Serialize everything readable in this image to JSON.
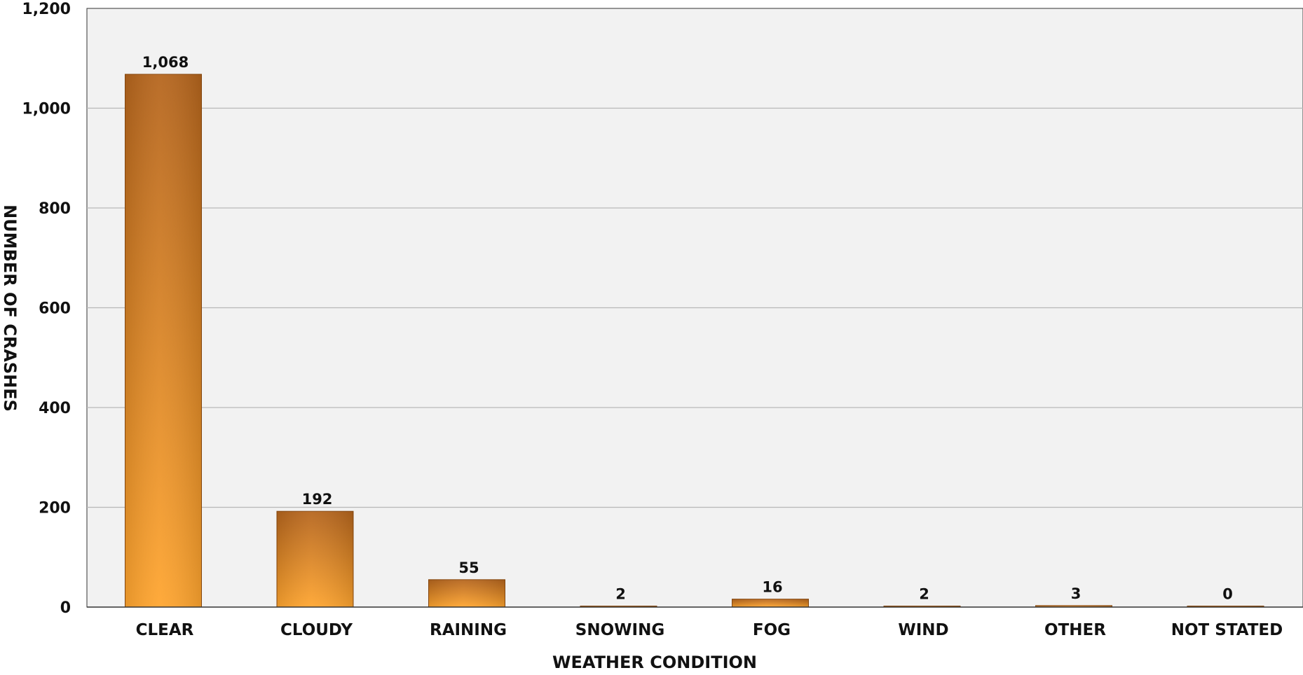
{
  "chart_data": {
    "type": "bar",
    "title": "",
    "xlabel": "WEATHER CONDITION",
    "ylabel": "NUMBER OF CRASHES",
    "categories": [
      "CLEAR",
      "CLOUDY",
      "RAINING",
      "SNOWING",
      "FOG",
      "WIND",
      "OTHER",
      "NOT STATED"
    ],
    "values": [
      1068,
      192,
      55,
      2,
      16,
      2,
      3,
      0
    ],
    "data_labels": [
      "1,068",
      "192",
      "55",
      "2",
      "16",
      "2",
      "3",
      "0"
    ],
    "ylim": [
      0,
      1200
    ],
    "yticks": [
      0,
      200,
      400,
      600,
      800,
      1000,
      1200
    ],
    "ytick_labels": [
      "0",
      "200",
      "400",
      "600",
      "800",
      "1,000",
      "1,200"
    ],
    "grid": true,
    "legend": "none",
    "colors": {
      "bar_top": "#b5651d",
      "bar_bottom": "#ffa52f",
      "bar_edge": "#8a4a10",
      "plot_background": "#f2f2f2",
      "gridline": "#b8b8b8",
      "axis": "#333333"
    }
  }
}
